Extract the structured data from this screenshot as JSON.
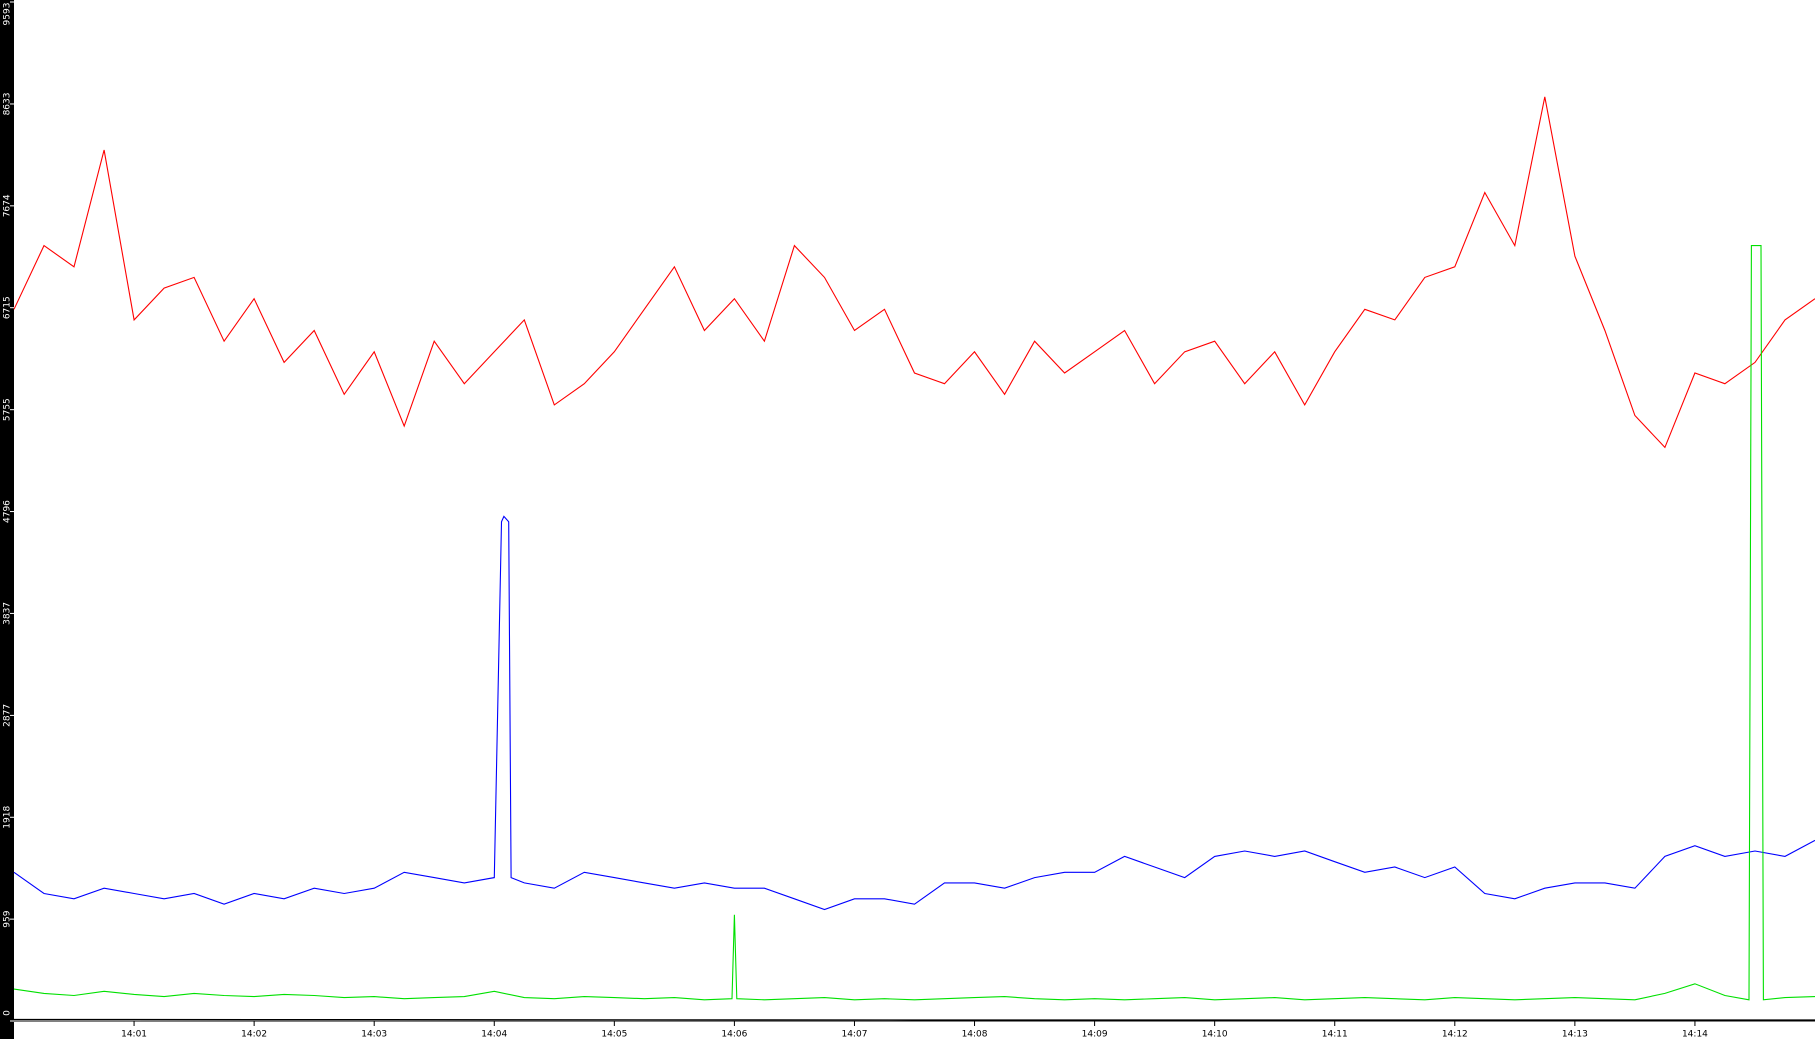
{
  "chart_data": {
    "type": "line",
    "x": [
      0,
      0.25,
      0.5,
      0.75,
      1,
      1.25,
      1.5,
      1.75,
      2,
      2.25,
      2.5,
      2.75,
      3,
      3.25,
      3.5,
      3.75,
      4,
      4.25,
      4.5,
      4.75,
      5,
      5.25,
      5.5,
      5.75,
      6,
      6.25,
      6.5,
      6.75,
      7,
      7.25,
      7.5,
      7.75,
      8,
      8.25,
      8.5,
      8.75,
      9,
      9.25,
      9.5,
      9.75,
      10,
      10.25,
      10.5,
      10.75,
      11,
      11.25,
      11.5,
      11.75,
      12,
      12.25,
      12.5,
      12.75,
      13,
      13.25,
      13.5,
      13.75,
      14,
      14.25,
      14.5,
      14.75,
      15
    ],
    "series": [
      {
        "color": "#ff0000",
        "values": [
          6700,
          7300,
          7100,
          8200,
          6600,
          6900,
          7000,
          6400,
          6800,
          6200,
          6500,
          5900,
          6300,
          5600,
          6400,
          6000,
          6300,
          6600,
          5800,
          6000,
          6300,
          6700,
          7100,
          6500,
          6800,
          6400,
          7300,
          7000,
          6500,
          6700,
          6100,
          6000,
          6300,
          5900,
          6400,
          6100,
          6300,
          6500,
          6000,
          6300,
          6400,
          6000,
          6300,
          5800,
          6300,
          6700,
          6600,
          7000,
          7100,
          7800,
          7300,
          8700,
          7200,
          6500,
          5700,
          5400,
          6100,
          6000,
          6200,
          6600,
          6800
        ]
      },
      {
        "color": "#0000ff",
        "x": [
          0,
          0.25,
          0.5,
          0.75,
          1,
          1.25,
          1.5,
          1.75,
          2,
          2.25,
          2.5,
          2.75,
          3,
          3.25,
          3.5,
          3.75,
          4,
          4.06,
          4.08,
          4.12,
          4.14,
          4.25,
          4.5,
          4.75,
          5,
          5.25,
          5.5,
          5.75,
          6,
          6.25,
          6.5,
          6.75,
          7,
          7.25,
          7.5,
          7.75,
          8,
          8.25,
          8.5,
          8.75,
          9,
          9.25,
          9.5,
          9.75,
          10,
          10.25,
          10.5,
          10.75,
          11,
          11.25,
          11.5,
          11.75,
          12,
          12.25,
          12.5,
          12.75,
          13,
          13.25,
          13.5,
          13.75,
          14,
          14.25,
          14.5,
          14.75,
          15
        ],
        "values": [
          1400,
          1200,
          1150,
          1250,
          1200,
          1150,
          1200,
          1100,
          1200,
          1150,
          1250,
          1200,
          1250,
          1400,
          1350,
          1300,
          1350,
          4700,
          4750,
          4700,
          1350,
          1300,
          1250,
          1400,
          1350,
          1300,
          1250,
          1300,
          1250,
          1250,
          1150,
          1050,
          1150,
          1150,
          1100,
          1300,
          1300,
          1250,
          1350,
          1400,
          1400,
          1550,
          1450,
          1350,
          1550,
          1600,
          1550,
          1600,
          1500,
          1400,
          1450,
          1350,
          1450,
          1200,
          1150,
          1250,
          1300,
          1300,
          1250,
          1550,
          1650,
          1550,
          1600,
          1550,
          1700
        ]
      },
      {
        "color": "#00e000",
        "x": [
          0,
          0.25,
          0.5,
          0.75,
          1,
          1.25,
          1.5,
          1.75,
          2,
          2.25,
          2.5,
          2.75,
          3,
          3.25,
          3.5,
          3.75,
          4,
          4.25,
          4.5,
          4.75,
          5,
          5.25,
          5.5,
          5.75,
          5.98,
          6,
          6.02,
          6.25,
          6.5,
          6.75,
          7,
          7.25,
          7.5,
          7.75,
          8,
          8.25,
          8.5,
          8.75,
          9,
          9.25,
          9.5,
          9.75,
          10,
          10.25,
          10.5,
          10.75,
          11,
          11.25,
          11.5,
          11.75,
          12,
          12.25,
          12.5,
          12.75,
          13,
          13.25,
          13.5,
          13.75,
          14,
          14.25,
          14.45,
          14.47,
          14.55,
          14.57,
          14.75,
          15
        ],
        "values": [
          300,
          260,
          240,
          280,
          250,
          230,
          260,
          240,
          230,
          250,
          240,
          220,
          230,
          210,
          220,
          230,
          280,
          220,
          210,
          230,
          220,
          210,
          220,
          200,
          210,
          1000,
          210,
          200,
          210,
          220,
          200,
          210,
          200,
          210,
          220,
          230,
          210,
          200,
          210,
          200,
          210,
          220,
          200,
          210,
          220,
          200,
          210,
          220,
          210,
          200,
          220,
          210,
          200,
          210,
          220,
          210,
          200,
          260,
          350,
          240,
          200,
          7300,
          7300,
          200,
          220,
          230
        ]
      },
      {
        "color": "#000000",
        "x": [
          0,
          7.5,
          15
        ],
        "values": [
          15,
          10,
          10
        ]
      }
    ],
    "xlim": [
      0,
      15
    ],
    "xticks": [
      {
        "value": 1,
        "label": "14:01"
      },
      {
        "value": 2,
        "label": "14:02"
      },
      {
        "value": 3,
        "label": "14:03"
      },
      {
        "value": 4,
        "label": "14:04"
      },
      {
        "value": 5,
        "label": "14:05"
      },
      {
        "value": 6,
        "label": "14:06"
      },
      {
        "value": 7,
        "label": "14:07"
      },
      {
        "value": 8,
        "label": "14:08"
      },
      {
        "value": 9,
        "label": "14:09"
      },
      {
        "value": 10,
        "label": "14:10"
      },
      {
        "value": 11,
        "label": "14:11"
      },
      {
        "value": 12,
        "label": "14:12"
      },
      {
        "value": 13,
        "label": "14:13"
      },
      {
        "value": 14,
        "label": "14:14"
      }
    ],
    "ylim": [
      0,
      9593
    ],
    "yticks": [
      0,
      959,
      1918,
      2877,
      3837,
      4796,
      5755,
      6715,
      7674,
      8633,
      9593
    ]
  }
}
